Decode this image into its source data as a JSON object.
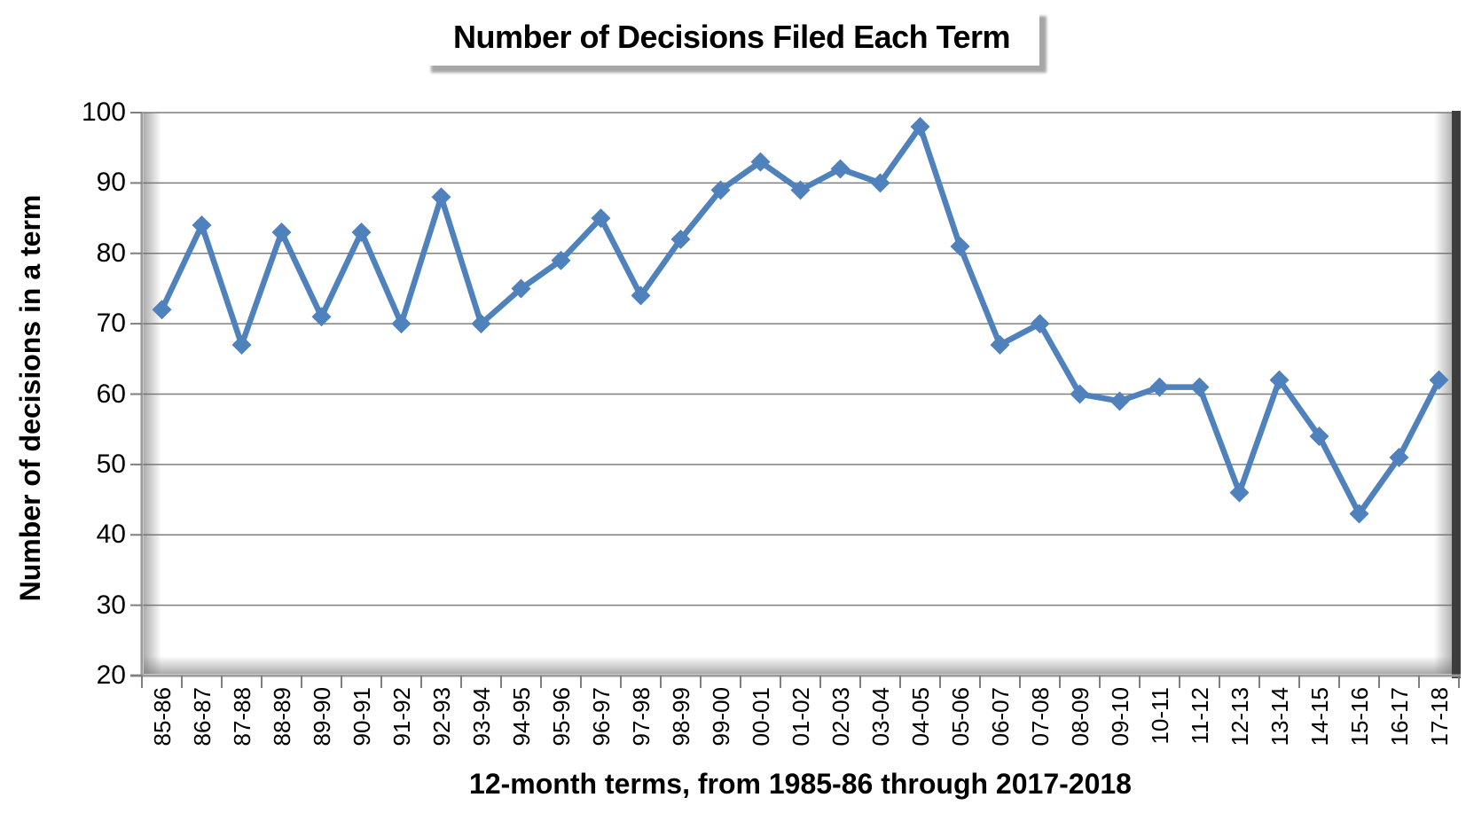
{
  "chart_data": {
    "type": "line",
    "title": "Number of Decisions Filed Each Term",
    "xlabel": "12-month terms, from 1985-86 through 2017-2018",
    "ylabel": "Number of decisions in a term",
    "categories": [
      "85-86",
      "86-87",
      "87-88",
      "88-89",
      "89-90",
      "90-91",
      "91-92",
      "92-93",
      "93-94",
      "94-95",
      "95-96",
      "96-97",
      "97-98",
      "98-99",
      "99-00",
      "00-01",
      "01-02",
      "02-03",
      "03-04",
      "04-05",
      "05-06",
      "06-07",
      "07-08",
      "08-09",
      "09-10",
      "10-11",
      "11-12",
      "12-13",
      "13-14",
      "14-15",
      "15-16",
      "16-17",
      "17-18"
    ],
    "values": [
      72,
      84,
      67,
      83,
      71,
      83,
      70,
      88,
      70,
      75,
      79,
      85,
      74,
      82,
      89,
      93,
      89,
      92,
      90,
      98,
      81,
      67,
      70,
      60,
      59,
      61,
      61,
      46,
      62,
      54,
      43,
      51,
      62
    ],
    "ylim": [
      20,
      100
    ],
    "yticks": [
      100,
      90,
      80,
      70,
      60,
      50,
      40,
      30,
      20
    ],
    "grid": "horizontal",
    "legend": "none",
    "marker": "diamond",
    "colors": {
      "line": "#4f81bd",
      "gridline": "#7f7f7f",
      "axis": "#9a9a9a",
      "wall": "#3d3d3d",
      "shadow": "#696969"
    }
  }
}
